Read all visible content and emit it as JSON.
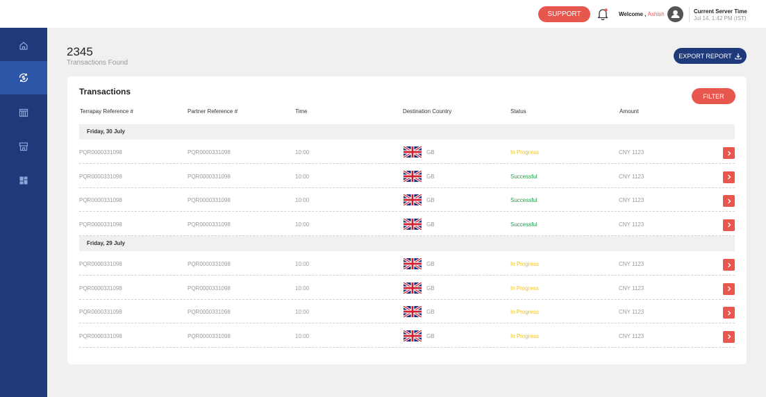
{
  "header": {
    "support_label": "SUPPORT",
    "welcome_prefix": "Welcome ,",
    "user_name": "Ashish",
    "server_time_title": "Current Server Time",
    "server_time_value": "Jul 14, 1:42 PM (IST)"
  },
  "sidebar": {
    "items": [
      {
        "name": "home",
        "icon": "home-icon",
        "active": false
      },
      {
        "name": "transactions",
        "icon": "exchange-icon",
        "active": true
      },
      {
        "name": "bank",
        "icon": "bank-icon",
        "active": false
      },
      {
        "name": "store",
        "icon": "store-icon",
        "active": false
      },
      {
        "name": "dashboard",
        "icon": "dashboard-icon",
        "active": false
      }
    ]
  },
  "summary": {
    "count": "2345",
    "label": "Transactions Found",
    "export_label": "EXPORT REPORT"
  },
  "table": {
    "title": "Transactions",
    "filter_label": "FILTER",
    "columns": [
      "Terrapay Reference #",
      "Partner Reference #",
      "Time",
      "Destination Country",
      "Status",
      "Amount"
    ],
    "groups": [
      {
        "date": "Friday, 30 July",
        "rows": [
          {
            "terrapay_ref": "PQR0000331098",
            "partner_ref": "PQR0000331098",
            "time": "10:00",
            "country": "GB",
            "status": "In Progress",
            "amount": "CNY 1123"
          },
          {
            "terrapay_ref": "PQR0000331098",
            "partner_ref": "PQR0000331098",
            "time": "10:00",
            "country": "GB",
            "status": "Successful",
            "amount": "CNY 1123"
          },
          {
            "terrapay_ref": "PQR0000331098",
            "partner_ref": "PQR0000331098",
            "time": "10:00",
            "country": "GB",
            "status": "Successful",
            "amount": "CNY 1123"
          },
          {
            "terrapay_ref": "PQR0000331098",
            "partner_ref": "PQR0000331098",
            "time": "10:00",
            "country": "GB",
            "status": "Successful",
            "amount": "CNY 1123"
          }
        ]
      },
      {
        "date": "Friday, 29 July",
        "rows": [
          {
            "terrapay_ref": "PQR0000331098",
            "partner_ref": "PQR0000331098",
            "time": "10:00",
            "country": "GB",
            "status": "In Progress",
            "amount": "CNY 1123"
          },
          {
            "terrapay_ref": "PQR0000331098",
            "partner_ref": "PQR0000331098",
            "time": "10:00",
            "country": "GB",
            "status": "In Progress",
            "amount": "CNY 1123"
          },
          {
            "terrapay_ref": "PQR0000331098",
            "partner_ref": "PQR0000331098",
            "time": "10:00",
            "country": "GB",
            "status": "In Progress",
            "amount": "CNY 1123"
          },
          {
            "terrapay_ref": "PQR0000331098",
            "partner_ref": "PQR0000331098",
            "time": "10:00",
            "country": "GB",
            "status": "In Progress",
            "amount": "CNY 1123"
          }
        ]
      }
    ]
  },
  "colors": {
    "accent": "#e8574e",
    "sidebar": "#1f3a7a",
    "sidebar_active": "#2e56a8",
    "status_in_progress": "#f2c21b",
    "status_successful": "#1e9c4a"
  }
}
